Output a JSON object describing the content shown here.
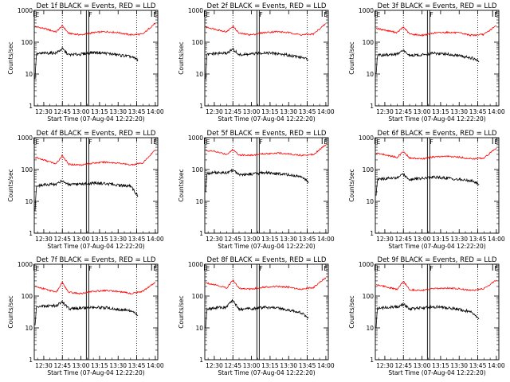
{
  "figure": {
    "panels": [
      {
        "title": "Det 1f BLACK = Events, RED = LLD"
      },
      {
        "title": "Det 2f BLACK = Events, RED = LLD"
      },
      {
        "title": "Det 3f BLACK = Events, RED = LLD"
      },
      {
        "title": "Det 4f BLACK = Events, RED = LLD"
      },
      {
        "title": "Det 5f BLACK = Events, RED = LLD"
      },
      {
        "title": "Det 6f BLACK = Events, RED = LLD"
      },
      {
        "title": "Det 7f BLACK = Events, RED = LLD"
      },
      {
        "title": "Det 8f BLACK = Events, RED = LLD"
      },
      {
        "title": "Det 9f BLACK = Events, RED = LLD"
      }
    ]
  },
  "chart_data": [
    {
      "type": "line",
      "title": "Det 1f BLACK = Events, RED = LLD",
      "xlabel": "Start Time (07-Aug-04 12:22:20)",
      "ylabel": "Counts/sec",
      "yscale": "log",
      "ylim": [
        1,
        1000
      ],
      "xlim": [
        "12:22:20",
        "14:02:00"
      ],
      "x_ticks": [
        "12:30",
        "12:45",
        "13:00",
        "13:15",
        "13:30",
        "13:45",
        "14:00"
      ],
      "y_ticks": [
        "1",
        "10",
        "100",
        "1000"
      ],
      "markers": [
        {
          "label": "E",
          "time": "12:22"
        },
        {
          "label": "F",
          "time": "13:05"
        },
        {
          "label": "E",
          "time": "13:57"
        }
      ],
      "series": [
        {
          "color": "#ff0000",
          "x": [
            "12:23",
            "12:30",
            "12:40",
            "12:45",
            "12:50",
            "13:00",
            "13:10",
            "13:20",
            "13:30",
            "13:40",
            "13:50",
            "14:00"
          ],
          "values": [
            310,
            270,
            210,
            330,
            190,
            170,
            200,
            215,
            200,
            170,
            180,
            400
          ]
        },
        {
          "color": "#000000",
          "x": [
            "12:23",
            "12:24",
            "12:30",
            "12:40",
            "12:45",
            "12:50",
            "13:00",
            "13:10",
            "13:20",
            "13:30",
            "13:40",
            "13:46"
          ],
          "values": [
            7,
            42,
            45,
            46,
            62,
            40,
            42,
            48,
            45,
            40,
            35,
            28
          ]
        }
      ]
    },
    {
      "type": "line",
      "title": "Det 2f BLACK = Events, RED = LLD",
      "xlabel": "Start Time (07-Aug-04 12:22:20)",
      "ylabel": "Counts/sec",
      "yscale": "log",
      "ylim": [
        1,
        1000
      ],
      "xlim": [
        "12:22:20",
        "14:02:00"
      ],
      "x_ticks": [
        "12:30",
        "12:45",
        "13:00",
        "13:15",
        "13:30",
        "13:45",
        "14:00"
      ],
      "y_ticks": [
        "1",
        "10",
        "100",
        "1000"
      ],
      "markers": [
        {
          "label": "E",
          "time": "12:22"
        },
        {
          "label": "F",
          "time": "13:05"
        },
        {
          "label": "E",
          "time": "13:57"
        }
      ],
      "series": [
        {
          "color": "#ff0000",
          "x": [
            "12:23",
            "12:30",
            "12:40",
            "12:45",
            "12:50",
            "13:00",
            "13:10",
            "13:20",
            "13:30",
            "13:40",
            "13:50",
            "14:00"
          ],
          "values": [
            300,
            260,
            210,
            320,
            190,
            170,
            200,
            215,
            200,
            170,
            180,
            380
          ]
        },
        {
          "color": "#000000",
          "x": [
            "12:23",
            "12:24",
            "12:30",
            "12:40",
            "12:45",
            "12:50",
            "13:00",
            "13:10",
            "13:20",
            "13:30",
            "13:40",
            "13:46"
          ],
          "values": [
            7,
            40,
            44,
            45,
            60,
            40,
            42,
            47,
            44,
            39,
            34,
            28
          ]
        }
      ]
    },
    {
      "type": "line",
      "title": "Det 3f BLACK = Events, RED = LLD",
      "xlabel": "Start Time (07-Aug-04 12:22:20)",
      "ylabel": "Counts/sec",
      "yscale": "log",
      "ylim": [
        1,
        1000
      ],
      "xlim": [
        "12:22:20",
        "14:02:00"
      ],
      "x_ticks": [
        "12:30",
        "12:45",
        "13:00",
        "13:15",
        "13:30",
        "13:45",
        "14:00"
      ],
      "y_ticks": [
        "1",
        "10",
        "100",
        "1000"
      ],
      "markers": [
        {
          "label": "E",
          "time": "12:22"
        },
        {
          "label": "F",
          "time": "13:05"
        },
        {
          "label": "E",
          "time": "13:57"
        }
      ],
      "series": [
        {
          "color": "#ff0000",
          "x": [
            "12:23",
            "12:30",
            "12:40",
            "12:45",
            "12:50",
            "13:00",
            "13:10",
            "13:20",
            "13:30",
            "13:40",
            "13:50",
            "14:00"
          ],
          "values": [
            270,
            240,
            200,
            300,
            180,
            165,
            195,
            205,
            195,
            165,
            175,
            330
          ]
        },
        {
          "color": "#000000",
          "x": [
            "12:23",
            "12:24",
            "12:30",
            "12:40",
            "12:45",
            "12:50",
            "13:00",
            "13:10",
            "13:20",
            "13:30",
            "13:40",
            "13:46"
          ],
          "values": [
            10,
            38,
            40,
            42,
            55,
            38,
            40,
            45,
            42,
            37,
            32,
            25
          ]
        }
      ]
    },
    {
      "type": "line",
      "title": "Det 4f BLACK = Events, RED = LLD",
      "xlabel": "Start Time (07-Aug-04 12:22:20)",
      "ylabel": "Counts/sec",
      "yscale": "log",
      "ylim": [
        1,
        1000
      ],
      "xlim": [
        "12:22:20",
        "14:02:00"
      ],
      "x_ticks": [
        "12:30",
        "12:45",
        "13:00",
        "13:15",
        "13:30",
        "13:45",
        "14:00"
      ],
      "y_ticks": [
        "1",
        "10",
        "100",
        "1000"
      ],
      "markers": [
        {
          "label": "E",
          "time": "12:22"
        },
        {
          "label": "F",
          "time": "13:05"
        },
        {
          "label": "E",
          "time": "13:57"
        }
      ],
      "series": [
        {
          "color": "#ff0000",
          "x": [
            "12:23",
            "12:30",
            "12:40",
            "12:45",
            "12:50",
            "13:00",
            "13:10",
            "13:20",
            "13:30",
            "13:40",
            "13:50",
            "14:00"
          ],
          "values": [
            240,
            200,
            150,
            280,
            145,
            140,
            160,
            170,
            160,
            140,
            160,
            420
          ]
        },
        {
          "color": "#000000",
          "x": [
            "12:23",
            "12:24",
            "12:30",
            "12:40",
            "12:45",
            "12:50",
            "13:00",
            "13:10",
            "13:20",
            "13:30",
            "13:40",
            "13:46"
          ],
          "values": [
            5,
            30,
            33,
            35,
            45,
            33,
            34,
            38,
            36,
            32,
            30,
            15
          ]
        }
      ]
    },
    {
      "type": "line",
      "title": "Det 5f BLACK = Events, RED = LLD",
      "xlabel": "Start Time (07-Aug-04 12:22:20)",
      "ylabel": "Counts/sec",
      "yscale": "log",
      "ylim": [
        1,
        1000
      ],
      "xlim": [
        "12:22:20",
        "14:02:00"
      ],
      "x_ticks": [
        "12:30",
        "12:45",
        "13:00",
        "13:15",
        "13:30",
        "13:45",
        "14:00"
      ],
      "y_ticks": [
        "1",
        "10",
        "100",
        "1000"
      ],
      "markers": [
        {
          "label": "E",
          "time": "12:22"
        },
        {
          "label": "F",
          "time": "13:05"
        },
        {
          "label": "E",
          "time": "13:57"
        }
      ],
      "series": [
        {
          "color": "#ff0000",
          "x": [
            "12:23",
            "12:30",
            "12:40",
            "12:45",
            "12:50",
            "13:00",
            "13:10",
            "13:20",
            "13:30",
            "13:40",
            "13:50",
            "14:00"
          ],
          "values": [
            400,
            370,
            300,
            420,
            290,
            280,
            310,
            330,
            310,
            280,
            300,
            600
          ]
        },
        {
          "color": "#000000",
          "x": [
            "12:23",
            "12:24",
            "12:30",
            "12:40",
            "12:45",
            "12:50",
            "13:00",
            "13:10",
            "13:20",
            "13:30",
            "13:40",
            "13:46"
          ],
          "values": [
            20,
            75,
            80,
            78,
            95,
            70,
            72,
            80,
            75,
            68,
            60,
            40
          ]
        }
      ]
    },
    {
      "type": "line",
      "title": "Det 6f BLACK = Events, RED = LLD",
      "xlabel": "Start Time (07-Aug-04 12:22:20)",
      "ylabel": "Counts/sec",
      "yscale": "log",
      "ylim": [
        1,
        1000
      ],
      "xlim": [
        "12:22:20",
        "14:02:00"
      ],
      "x_ticks": [
        "12:30",
        "12:45",
        "13:00",
        "13:15",
        "13:30",
        "13:45",
        "14:00"
      ],
      "y_ticks": [
        "1",
        "10",
        "100",
        "1000"
      ],
      "markers": [
        {
          "label": "E",
          "time": "12:22"
        },
        {
          "label": "F",
          "time": "13:05"
        },
        {
          "label": "E",
          "time": "13:57"
        }
      ],
      "series": [
        {
          "color": "#ff0000",
          "x": [
            "12:23",
            "12:30",
            "12:40",
            "12:45",
            "12:50",
            "13:00",
            "13:10",
            "13:20",
            "13:30",
            "13:40",
            "13:50",
            "14:00"
          ],
          "values": [
            330,
            290,
            240,
            370,
            230,
            215,
            250,
            260,
            245,
            215,
            230,
            480
          ]
        },
        {
          "color": "#000000",
          "x": [
            "12:23",
            "12:24",
            "12:30",
            "12:40",
            "12:45",
            "12:50",
            "13:00",
            "13:10",
            "13:20",
            "13:30",
            "13:40",
            "13:46"
          ],
          "values": [
            15,
            48,
            52,
            55,
            70,
            50,
            52,
            58,
            54,
            48,
            44,
            35
          ]
        }
      ]
    },
    {
      "type": "line",
      "title": "Det 7f BLACK = Events, RED = LLD",
      "xlabel": "Start Time (07-Aug-04 12:22:20)",
      "ylabel": "Counts/sec",
      "yscale": "log",
      "ylim": [
        1,
        1000
      ],
      "xlim": [
        "12:22:20",
        "14:02:00"
      ],
      "x_ticks": [
        "12:30",
        "12:45",
        "13:00",
        "13:15",
        "13:30",
        "13:45",
        "14:00"
      ],
      "y_ticks": [
        "1",
        "10",
        "100",
        "1000"
      ],
      "markers": [
        {
          "label": "E",
          "time": "12:22"
        },
        {
          "label": "F",
          "time": "13:05"
        },
        {
          "label": "E",
          "time": "13:57"
        }
      ],
      "series": [
        {
          "color": "#ff0000",
          "x": [
            "12:23",
            "12:30",
            "12:40",
            "12:45",
            "12:50",
            "13:00",
            "13:10",
            "13:20",
            "13:30",
            "13:40",
            "13:50",
            "14:00"
          ],
          "values": [
            200,
            170,
            130,
            270,
            130,
            120,
            140,
            150,
            140,
            120,
            140,
            270
          ]
        },
        {
          "color": "#000000",
          "x": [
            "12:23",
            "12:24",
            "12:30",
            "12:40",
            "12:45",
            "12:50",
            "13:00",
            "13:10",
            "13:20",
            "13:30",
            "13:40",
            "13:46"
          ],
          "values": [
            12,
            45,
            48,
            50,
            65,
            40,
            42,
            45,
            43,
            38,
            34,
            25
          ]
        }
      ]
    },
    {
      "type": "line",
      "title": "Det 8f BLACK = Events, RED = LLD",
      "xlabel": "Start Time (07-Aug-04 12:22:20)",
      "ylabel": "Counts/sec",
      "yscale": "log",
      "ylim": [
        1,
        1000
      ],
      "xlim": [
        "12:22:20",
        "14:02:00"
      ],
      "x_ticks": [
        "12:30",
        "12:45",
        "13:00",
        "13:15",
        "13:30",
        "13:45",
        "14:00"
      ],
      "y_ticks": [
        "1",
        "10",
        "100",
        "1000"
      ],
      "markers": [
        {
          "label": "E",
          "time": "12:22"
        },
        {
          "label": "F",
          "time": "13:05"
        },
        {
          "label": "E",
          "time": "13:57"
        }
      ],
      "series": [
        {
          "color": "#ff0000",
          "x": [
            "12:23",
            "12:30",
            "12:40",
            "12:45",
            "12:50",
            "13:00",
            "13:10",
            "13:20",
            "13:30",
            "13:40",
            "13:50",
            "14:00"
          ],
          "values": [
            260,
            230,
            180,
            320,
            175,
            165,
            190,
            200,
            190,
            165,
            185,
            380
          ]
        },
        {
          "color": "#000000",
          "x": [
            "12:23",
            "12:24",
            "12:30",
            "12:40",
            "12:45",
            "12:50",
            "13:00",
            "13:10",
            "13:20",
            "13:30",
            "13:40",
            "13:46"
          ],
          "values": [
            10,
            40,
            42,
            45,
            75,
            38,
            40,
            44,
            42,
            36,
            30,
            20
          ]
        }
      ]
    },
    {
      "type": "line",
      "title": "Det 9f BLACK = Events, RED = LLD",
      "xlabel": "Start Time (07-Aug-04 12:22:20)",
      "ylabel": "Counts/sec",
      "yscale": "log",
      "ylim": [
        1,
        1000
      ],
      "xlim": [
        "12:22:20",
        "14:02:00"
      ],
      "x_ticks": [
        "12:30",
        "12:45",
        "13:00",
        "13:15",
        "13:30",
        "13:45",
        "14:00"
      ],
      "y_ticks": [
        "1",
        "10",
        "100",
        "1000"
      ],
      "markers": [
        {
          "label": "E",
          "time": "12:22"
        },
        {
          "label": "F",
          "time": "13:05"
        },
        {
          "label": "E",
          "time": "13:57"
        }
      ],
      "series": [
        {
          "color": "#ff0000",
          "x": [
            "12:23",
            "12:30",
            "12:40",
            "12:45",
            "12:50",
            "13:00",
            "13:10",
            "13:20",
            "13:30",
            "13:40",
            "13:50",
            "14:00"
          ],
          "values": [
            230,
            200,
            160,
            290,
            160,
            150,
            170,
            180,
            170,
            150,
            170,
            320
          ]
        },
        {
          "color": "#000000",
          "x": [
            "12:23",
            "12:24",
            "12:30",
            "12:40",
            "12:45",
            "12:50",
            "13:00",
            "13:10",
            "13:20",
            "13:30",
            "13:40",
            "13:46"
          ],
          "values": [
            10,
            42,
            44,
            46,
            55,
            40,
            42,
            46,
            43,
            38,
            32,
            20
          ]
        }
      ]
    }
  ]
}
